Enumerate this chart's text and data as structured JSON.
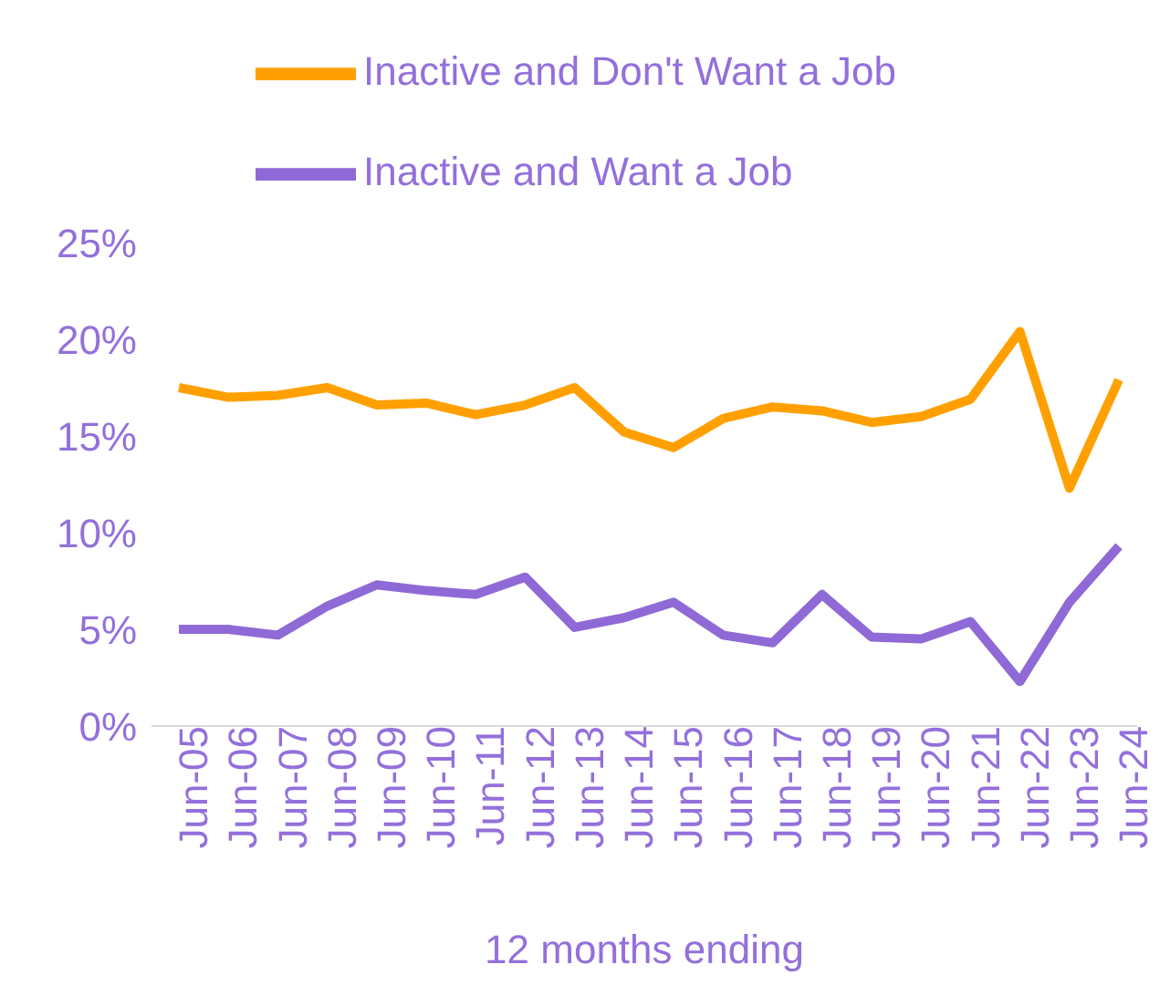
{
  "chart_data": {
    "type": "line",
    "xlabel": "12 months ending",
    "categories": [
      "Jun-05",
      "Jun-06",
      "Jun-07",
      "Jun-08",
      "Jun-09",
      "Jun-10",
      "Jun-11",
      "Jun-12",
      "Jun-13",
      "Jun-14",
      "Jun-15",
      "Jun-16",
      "Jun-17",
      "Jun-18",
      "Jun-19",
      "Jun-20",
      "Jun-21",
      "Jun-22",
      "Jun-23",
      "Jun-24"
    ],
    "series": [
      {
        "name": "Inactive and Don't Want a Job",
        "color": "#ffa000",
        "values": [
          17.5,
          17.0,
          17.1,
          17.5,
          16.6,
          16.7,
          16.1,
          16.6,
          17.5,
          15.2,
          14.4,
          15.9,
          16.5,
          16.3,
          15.7,
          16.0,
          16.9,
          20.4,
          12.3,
          17.9
        ]
      },
      {
        "name": "Inactive and Want a Job",
        "color": "#8f6ad6",
        "values": [
          5.0,
          5.0,
          4.7,
          6.2,
          7.3,
          7.0,
          6.8,
          7.7,
          5.1,
          5.6,
          6.4,
          4.7,
          4.3,
          6.8,
          4.6,
          4.5,
          5.4,
          2.3,
          6.4,
          9.3
        ]
      }
    ],
    "ylim": [
      0,
      25
    ],
    "yticks": [
      {
        "value": 0,
        "label": "0%"
      },
      {
        "value": 5,
        "label": "5%"
      },
      {
        "value": 10,
        "label": "10%"
      },
      {
        "value": 15,
        "label": "15%"
      },
      {
        "value": 20,
        "label": "20%"
      },
      {
        "value": 25,
        "label": "25%"
      }
    ],
    "grid": false,
    "legend": "top",
    "marker": "none",
    "line_style": "solid"
  }
}
